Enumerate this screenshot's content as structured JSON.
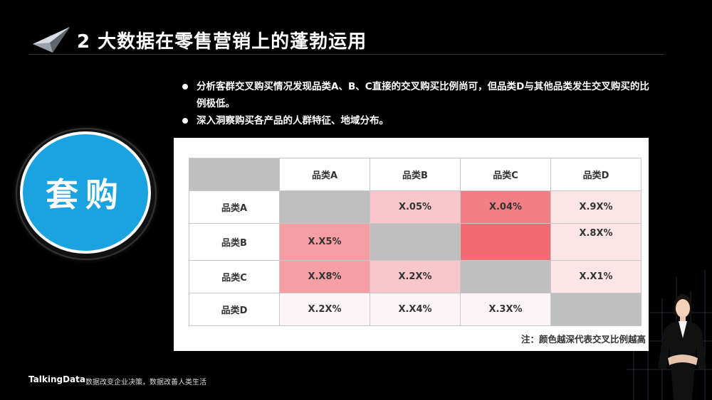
{
  "title": "2 大数据在零售营销上的蓬勃运用",
  "bullets": [
    "分析客群交叉购买情况发现品类A、B、C直接的交叉购买比例尚可，但品类D与其他品类发生交叉购买的比例极低。",
    "深入洞察购买各产品的人群特征、地域分布。"
  ],
  "badge": "套购",
  "matrix": {
    "columns": [
      "品类A",
      "品类B",
      "品类C",
      "品类D"
    ],
    "rows": [
      {
        "label": "品类A",
        "cells": [
          {
            "text": "",
            "color": "#bfbfbf"
          },
          {
            "text": "X.05%",
            "color": "#f9c6cc"
          },
          {
            "text": "X.04%",
            "color": "#f27f86"
          },
          {
            "text": "X.9X%",
            "color": "#fde5e8"
          }
        ]
      },
      {
        "label": "品类B",
        "cells": [
          {
            "text": "X.X5%",
            "color": "#f59ea3"
          },
          {
            "text": "",
            "color": "#bfbfbf"
          },
          {
            "text": "",
            "color": "#f26a72"
          },
          {
            "text": "X.8X%",
            "color": "#fde5e8"
          }
        ]
      },
      {
        "label": "品类C",
        "cells": [
          {
            "text": "X.X8%",
            "color": "#f59ea3"
          },
          {
            "text": "X.2X%",
            "color": "#f9c6cc"
          },
          {
            "text": "",
            "color": "#bfbfbf"
          },
          {
            "text": "X.X1%",
            "color": "#fde5e8"
          }
        ]
      },
      {
        "label": "品类D",
        "cells": [
          {
            "text": "X.2X%",
            "color": "#fcf5f7"
          },
          {
            "text": "X.X4%",
            "color": "#fcf5f7"
          },
          {
            "text": "X.3X%",
            "color": "#fcf5f7"
          },
          {
            "text": "",
            "color": "#bfbfbf"
          }
        ]
      }
    ]
  },
  "note": "注：颜色越深代表交叉比例越高",
  "footer": {
    "brand": "TalkingData",
    "slogan": "数据改变企业决策，数据改善人类生活"
  }
}
